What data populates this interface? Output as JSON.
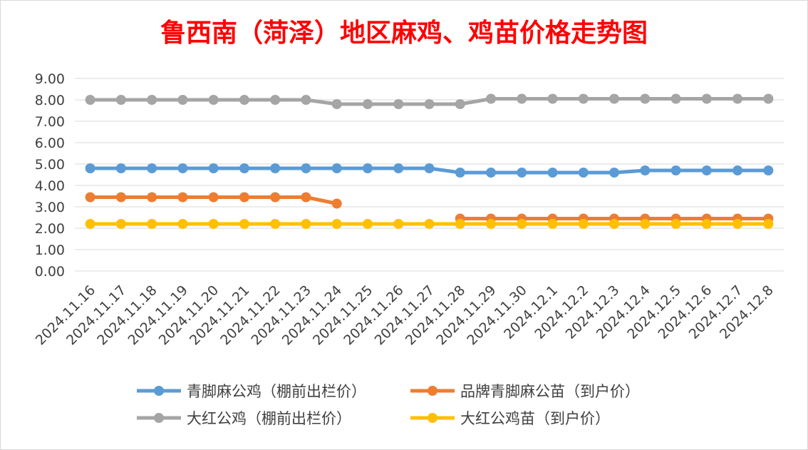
{
  "chart_data": {
    "type": "line",
    "title": "鲁西南（菏泽）地区麻鸡、鸡苗价格走势图",
    "title_color": "#ff0000",
    "categories": [
      "2024.11.16",
      "2024.11.17",
      "2024.11.18",
      "2024.11.19",
      "2024.11.20",
      "2024.11.21",
      "2024.11.22",
      "2024.11.23",
      "2024.11.24",
      "2024.11.25",
      "2024.11.26",
      "2024.11.27",
      "2024.11.28",
      "2024.11.29",
      "2024.11.30",
      "2024.12.1",
      "2024.12.2",
      "2024.12.3",
      "2024.12.4",
      "2024.12.5",
      "2024.12.6",
      "2024.12.7",
      "2024.12.8"
    ],
    "ylim": [
      0,
      9
    ],
    "yticks": [
      "0.00",
      "1.00",
      "2.00",
      "3.00",
      "4.00",
      "5.00",
      "6.00",
      "7.00",
      "8.00",
      "9.00"
    ],
    "grid": true,
    "legend_position": "bottom",
    "series": [
      {
        "name": "青脚麻公鸡（棚前出栏价）",
        "color": "#5b9bd5",
        "values": [
          4.8,
          4.8,
          4.8,
          4.8,
          4.8,
          4.8,
          4.8,
          4.8,
          4.8,
          4.8,
          4.8,
          4.8,
          4.6,
          4.6,
          4.6,
          4.6,
          4.6,
          4.6,
          4.7,
          4.7,
          4.7,
          4.7,
          4.7
        ]
      },
      {
        "name": "品牌青脚麻公苗（到户价）",
        "color": "#ed7d31",
        "values": [
          3.45,
          3.45,
          3.45,
          3.45,
          3.45,
          3.45,
          3.45,
          3.45,
          3.15,
          null,
          null,
          null,
          2.45,
          2.45,
          2.45,
          2.45,
          2.45,
          2.45,
          2.45,
          2.45,
          2.45,
          2.45,
          2.45
        ]
      },
      {
        "name": "大红公鸡（棚前出栏价）",
        "color": "#a5a5a5",
        "values": [
          8.0,
          8.0,
          8.0,
          8.0,
          8.0,
          8.0,
          8.0,
          8.0,
          7.8,
          7.8,
          7.8,
          7.8,
          7.8,
          8.05,
          8.05,
          8.05,
          8.05,
          8.05,
          8.05,
          8.05,
          8.05,
          8.05,
          8.05
        ]
      },
      {
        "name": "大红公鸡苗（到户价）",
        "color": "#ffc000",
        "values": [
          2.2,
          2.2,
          2.2,
          2.2,
          2.2,
          2.2,
          2.2,
          2.2,
          2.2,
          2.2,
          2.2,
          2.2,
          2.2,
          2.2,
          2.2,
          2.2,
          2.2,
          2.2,
          2.2,
          2.2,
          2.2,
          2.2,
          2.2
        ]
      }
    ]
  }
}
